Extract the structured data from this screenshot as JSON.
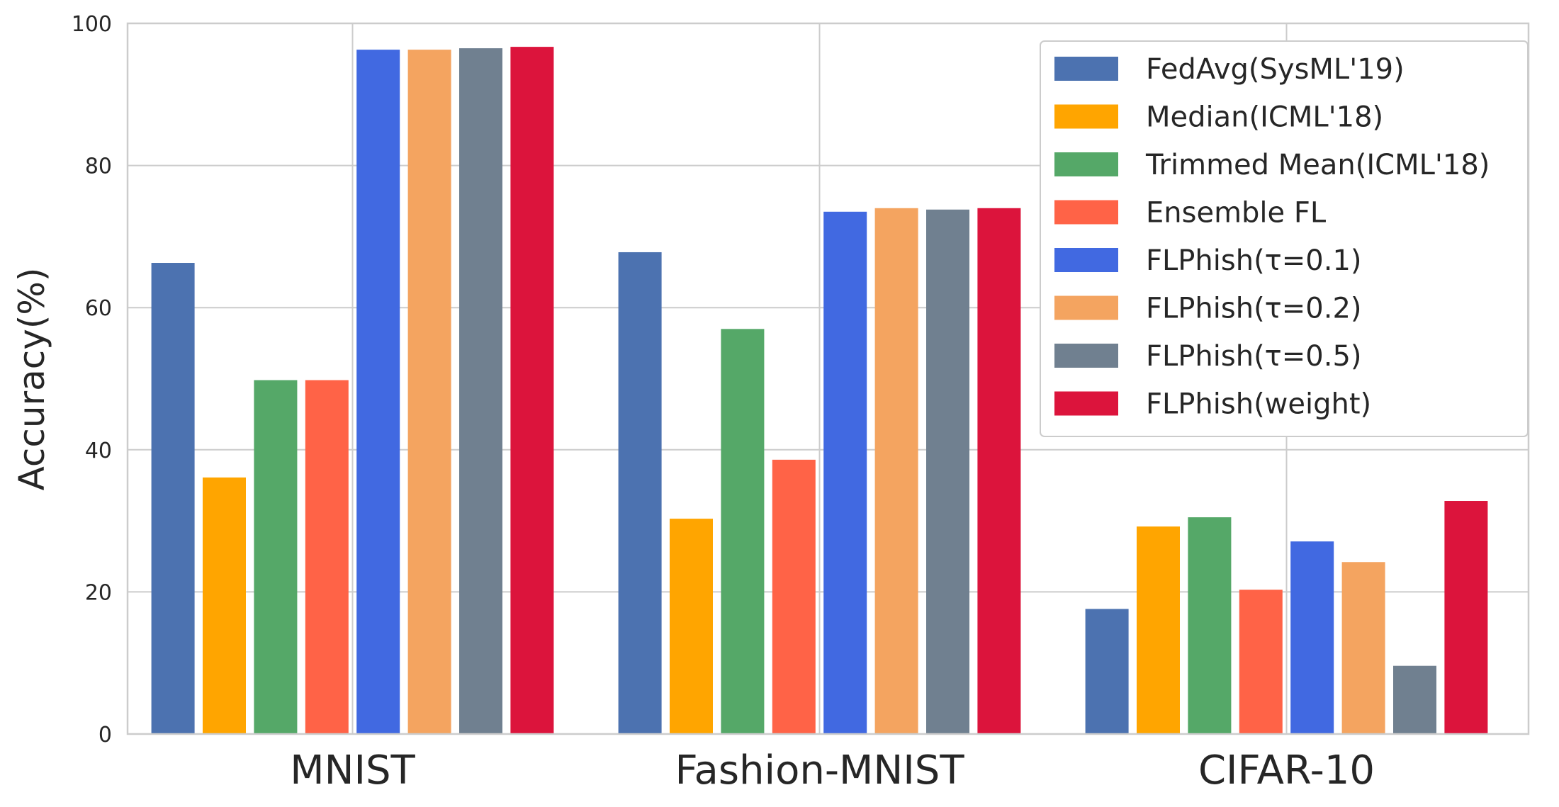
{
  "chart_data": {
    "type": "bar",
    "title": "",
    "xlabel": "",
    "ylabel": "Accuracy(%)",
    "ylim": [
      0,
      100
    ],
    "yticks": [
      "0",
      "20",
      "40",
      "60",
      "80",
      "100"
    ],
    "grid": true,
    "legend_position": "top-right",
    "categories": [
      "MNIST",
      "Fashion-MNIST",
      "CIFAR-10"
    ],
    "series": [
      {
        "name": "FedAvg(SysML'19)",
        "color": "#4c72b0",
        "values": [
          66.3,
          67.8,
          17.6
        ]
      },
      {
        "name": "Median(ICML'18)",
        "color": "#ffa500",
        "values": [
          36.1,
          30.3,
          29.2
        ]
      },
      {
        "name": "Trimmed Mean(ICML'18)",
        "color": "#55a868",
        "values": [
          49.8,
          57.0,
          30.5
        ]
      },
      {
        "name": "Ensemble FL",
        "color": "#ff6347",
        "values": [
          49.8,
          38.6,
          20.3
        ]
      },
      {
        "name": "FLPhish(τ=0.1)",
        "color": "#4169e1",
        "values": [
          96.3,
          73.5,
          27.1
        ]
      },
      {
        "name": "FLPhish(τ=0.2)",
        "color": "#f4a460",
        "values": [
          96.3,
          74.0,
          24.2
        ]
      },
      {
        "name": "FLPhish(τ=0.5)",
        "color": "#708090",
        "values": [
          96.5,
          73.8,
          9.6
        ]
      },
      {
        "name": "FLPhish(weight)",
        "color": "#dc143c",
        "values": [
          96.7,
          74.0,
          32.8
        ]
      }
    ]
  }
}
